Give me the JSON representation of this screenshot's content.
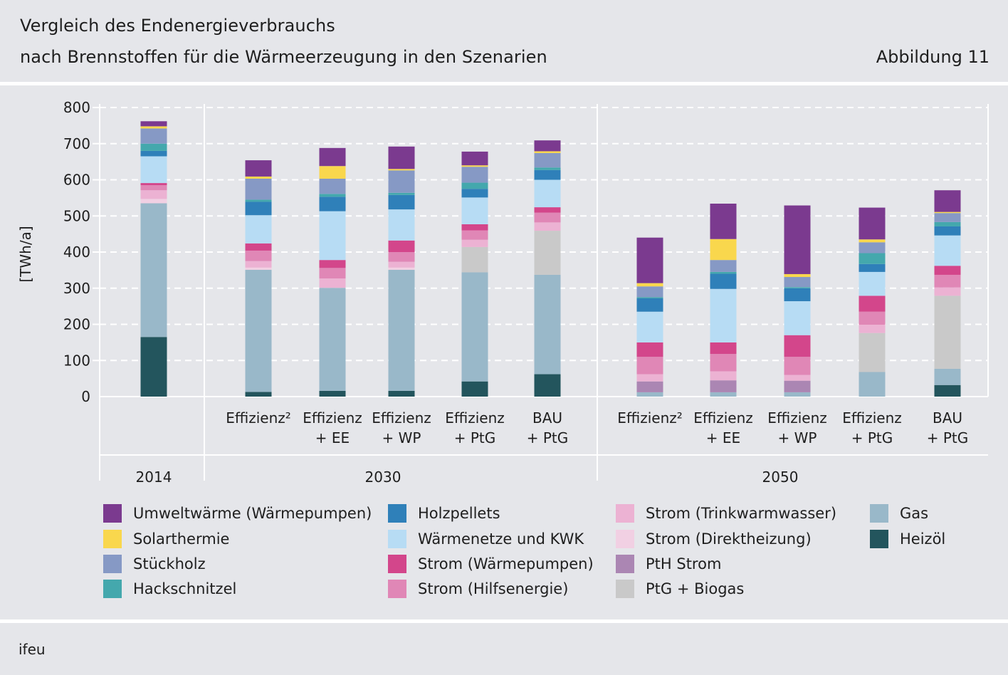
{
  "header": {
    "title_line1": "Vergleich des Endenergieverbrauchs",
    "title_line2": "nach Brennstoffen für die Wärmeerzeugung in den Szenarien",
    "figure_label": "Abbildung 11"
  },
  "footer": {
    "source": "ifeu"
  },
  "chart_data": {
    "type": "bar",
    "stacked": true,
    "ylabel": "[TWh/a]",
    "ylim": [
      0,
      800
    ],
    "yticks": [
      0,
      100,
      200,
      300,
      400,
      500,
      600,
      700,
      800
    ],
    "grid": true,
    "legend_position": "bottom",
    "groups": [
      {
        "label": "2014",
        "categories": [
          ""
        ]
      },
      {
        "label": "2030",
        "categories": [
          "Effizienz²",
          "Effizienz\n+ EE",
          "Effizienz\n+ WP",
          "Effizienz\n+ PtG",
          "BAU\n+ PtG"
        ]
      },
      {
        "label": "2050",
        "categories": [
          "Effizienz²",
          "Effizienz\n+ EE",
          "Effizienz\n+ WP",
          "Effizienz\n+ PtG",
          "BAU\n+ PtG"
        ]
      }
    ],
    "series": [
      {
        "name": "Heizöl",
        "color": "#23555d",
        "values": [
          165,
          13,
          16,
          16,
          42,
          62,
          0,
          0,
          0,
          0,
          32
        ]
      },
      {
        "name": "Gas",
        "color": "#99b8c9",
        "values": [
          370,
          338,
          285,
          335,
          302,
          275,
          12,
          12,
          12,
          68,
          45
        ]
      },
      {
        "name": "PtG + Biogas",
        "color": "#c9c9c9",
        "values": [
          0,
          0,
          0,
          0,
          70,
          122,
          0,
          0,
          0,
          108,
          202
        ]
      },
      {
        "name": "PtH Strom",
        "color": "#ab86b3",
        "values": [
          0,
          0,
          0,
          0,
          0,
          0,
          30,
          33,
          32,
          0,
          0
        ]
      },
      {
        "name": "Strom (Direktheizung)",
        "color": "#f1d0e3",
        "values": [
          12,
          6,
          0,
          6,
          0,
          0,
          0,
          0,
          0,
          0,
          0
        ]
      },
      {
        "name": "Strom (Trinkwarmwasser)",
        "color": "#ecb2d3",
        "values": [
          24,
          18,
          26,
          16,
          20,
          23,
          20,
          25,
          16,
          23,
          23
        ]
      },
      {
        "name": "Strom (Hilfsenergie)",
        "color": "#e087b6",
        "values": [
          14,
          29,
          29,
          27,
          26,
          27,
          48,
          48,
          50,
          36,
          35
        ]
      },
      {
        "name": "Strom (Wärmepumpen)",
        "color": "#d3468b",
        "values": [
          6,
          20,
          22,
          32,
          17,
          15,
          40,
          32,
          60,
          44,
          25
        ]
      },
      {
        "name": "Wärmenetze und KWK",
        "color": "#b7dcf4",
        "values": [
          74,
          78,
          135,
          86,
          74,
          76,
          85,
          148,
          94,
          66,
          84
        ]
      },
      {
        "name": "Holzpellets",
        "color": "#2f80b9",
        "values": [
          15,
          37,
          40,
          40,
          24,
          27,
          37,
          42,
          36,
          22,
          25
        ]
      },
      {
        "name": "Hackschnitzel",
        "color": "#44a8ad",
        "values": [
          20,
          6,
          8,
          6,
          17,
          7,
          3,
          5,
          3,
          30,
          12
        ]
      },
      {
        "name": "Stückholz",
        "color": "#8699c5",
        "values": [
          42,
          58,
          42,
          62,
          44,
          40,
          30,
          33,
          28,
          30,
          25
        ]
      },
      {
        "name": "Solarthermie",
        "color": "#f9d74d",
        "values": [
          6,
          6,
          35,
          4,
          4,
          5,
          9,
          58,
          8,
          8,
          3
        ]
      },
      {
        "name": "Umweltwärme (Wärmepumpen)",
        "color": "#7b3a8f",
        "values": [
          14,
          45,
          50,
          62,
          38,
          30,
          126,
          98,
          190,
          88,
          60
        ]
      }
    ]
  },
  "legend": [
    {
      "label": "Umweltwärme (Wärmepumpen)",
      "color": "#7b3a8f"
    },
    {
      "label": "Solarthermie",
      "color": "#f9d74d"
    },
    {
      "label": "Stückholz",
      "color": "#8699c5"
    },
    {
      "label": "Hackschnitzel",
      "color": "#44a8ad"
    },
    {
      "label": "Holzpellets",
      "color": "#2f80b9"
    },
    {
      "label": "Wärmenetze und KWK",
      "color": "#b7dcf4"
    },
    {
      "label": "Strom (Wärmepumpen)",
      "color": "#d3468b"
    },
    {
      "label": "Strom (Hilfsenergie)",
      "color": "#e087b6"
    },
    {
      "label": "Strom (Trinkwarmwasser)",
      "color": "#ecb2d3"
    },
    {
      "label": "Strom (Direktheizung)",
      "color": "#f1d0e3"
    },
    {
      "label": "PtH Strom",
      "color": "#ab86b3"
    },
    {
      "label": "PtG + Biogas",
      "color": "#c9c9c9"
    },
    {
      "label": "Gas",
      "color": "#99b8c9"
    },
    {
      "label": "Heizöl",
      "color": "#23555d"
    }
  ]
}
